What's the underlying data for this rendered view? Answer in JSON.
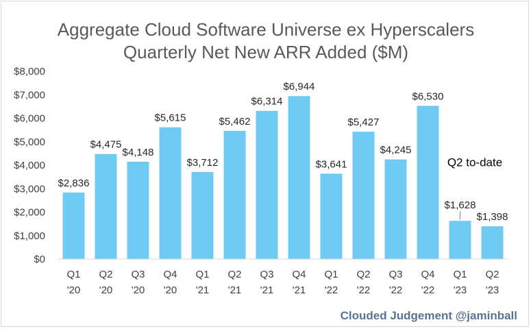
{
  "chart_data": {
    "type": "bar",
    "title": "Aggregate Cloud Software Universe ex Hyperscalers",
    "subtitle": "Quarterly Net New ARR Added ($M)",
    "categories": [
      [
        "Q1",
        "'20"
      ],
      [
        "Q2",
        "'20"
      ],
      [
        "Q3",
        "'20"
      ],
      [
        "Q4",
        "'20"
      ],
      [
        "Q1",
        "'21"
      ],
      [
        "Q2",
        "'21"
      ],
      [
        "Q3",
        "'21"
      ],
      [
        "Q4",
        "'21"
      ],
      [
        "Q1",
        "'22"
      ],
      [
        "Q2",
        "'22"
      ],
      [
        "Q3",
        "'22"
      ],
      [
        "Q4",
        "'22"
      ],
      [
        "Q1",
        "'23"
      ],
      [
        "Q2",
        "'23"
      ]
    ],
    "values": [
      2836,
      4475,
      4148,
      5615,
      3712,
      5462,
      6314,
      6944,
      3641,
      5427,
      4245,
      6530,
      1628,
      1398
    ],
    "value_labels": [
      "$2,836",
      "$4,475",
      "$4,148",
      "$5,615",
      "$3,712",
      "$5,462",
      "$6,314",
      "$6,944",
      "$3,641",
      "$5,427",
      "$4,245",
      "$6,530",
      "$1,628",
      "$1,398"
    ],
    "ylim": [
      0,
      8000
    ],
    "yticks": [
      0,
      1000,
      2000,
      3000,
      4000,
      5000,
      6000,
      7000,
      8000
    ],
    "ytick_labels": [
      "$0",
      "$1,000",
      "$2,000",
      "$3,000",
      "$4,000",
      "$5,000",
      "$6,000",
      "$7,000",
      "$8,000"
    ],
    "xlabel": "",
    "ylabel": "",
    "grid": false,
    "legend": "none",
    "bar_color": "#6fcbf3",
    "annotation": {
      "text": "Q2 to-date",
      "applies_to_index": 13
    },
    "credit": "Clouded Judgement @jaminball"
  }
}
